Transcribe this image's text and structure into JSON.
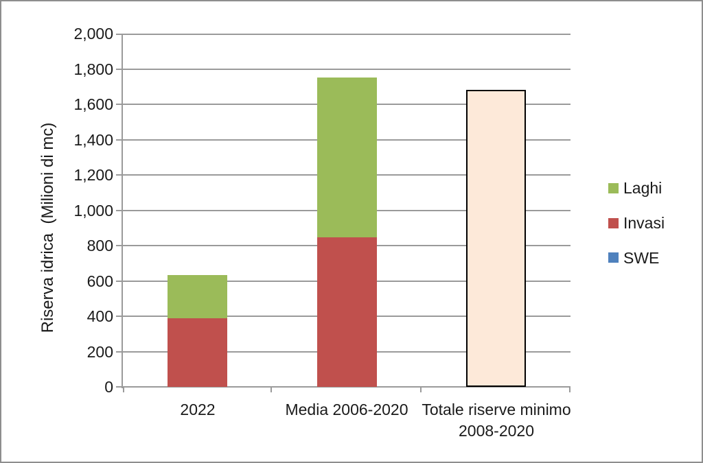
{
  "chart_data": {
    "type": "bar",
    "stacked": true,
    "title": "",
    "ylabel": "Riserva idrica  (Milioni di mc)",
    "xlabel": "",
    "ylim": [
      0,
      2000
    ],
    "grid": true,
    "legend_position": "right",
    "categories": [
      "2022",
      "Media 2006-2020",
      "Totale riserve minimo 2008-2020"
    ],
    "series": [
      {
        "name": "Invasi",
        "color": "#c0504d",
        "values": [
          390,
          845,
          0
        ]
      },
      {
        "name": "Laghi",
        "color": "#9bbb59",
        "values": [
          245,
          905,
          0
        ]
      },
      {
        "name": "SWE",
        "color": "#4f81bd",
        "values": [
          0,
          0,
          0
        ]
      },
      {
        "name": "Totale riserve minimo 2008-2020",
        "color": "#fde9d9",
        "border_color": "#000000",
        "values": [
          0,
          0,
          1680
        ]
      }
    ],
    "category_totals": [
      635,
      1750,
      1680
    ],
    "yticks": [
      0,
      200,
      400,
      600,
      800,
      1000,
      1200,
      1400,
      1600,
      1800,
      2000
    ],
    "ytick_labels": [
      "0",
      "200",
      "400",
      "600",
      "800",
      "1,000",
      "1,200",
      "1,400",
      "1,600",
      "1,800",
      "2,000"
    ],
    "legend": [
      {
        "label": "Laghi",
        "color": "#9bbb59"
      },
      {
        "label": "Invasi",
        "color": "#c0504d"
      },
      {
        "label": "SWE",
        "color": "#4f81bd"
      }
    ],
    "colors": {
      "gridline": "#9a9a9a",
      "axis": "#9a9a9a",
      "text": "#1a1a1a",
      "outer_border": "#8e8e8e"
    }
  }
}
